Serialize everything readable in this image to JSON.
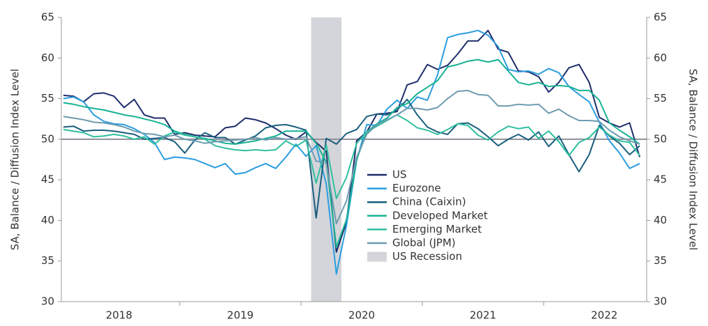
{
  "chart_data": {
    "type": "line",
    "y_label": "SA, Balance / Diffusion Index Level",
    "y2_label": "SA, Balance / Diffusion Index Level",
    "categories": [
      null,
      null,
      null,
      null,
      null,
      "2018",
      null,
      null,
      null,
      null,
      null,
      null,
      null,
      null,
      null,
      null,
      null,
      "2019",
      null,
      null,
      null,
      null,
      null,
      null,
      null,
      null,
      null,
      null,
      null,
      "2020",
      null,
      null,
      null,
      null,
      null,
      null,
      null,
      null,
      null,
      null,
      null,
      "2021",
      null,
      null,
      null,
      null,
      null,
      null,
      null,
      null,
      null,
      null,
      null,
      "2022",
      null,
      null,
      null,
      null
    ],
    "ylim": [
      30,
      65
    ],
    "yticks": [
      30,
      35,
      40,
      45,
      50,
      55,
      60,
      65
    ],
    "y2lim": [
      30,
      65
    ],
    "y2ticks": [
      30,
      35,
      40,
      45,
      50,
      55,
      60,
      65
    ],
    "reference_line": 50,
    "recession": {
      "name": "US Recession",
      "color": "#d4d5da",
      "span": [
        25,
        27
      ]
    },
    "series": [
      {
        "name": "US",
        "color": "#1f2d6b",
        "values": [
          55.4,
          55.3,
          54.6,
          55.6,
          55.7,
          55.3,
          53.9,
          54.9,
          53.0,
          52.6,
          52.6,
          50.6,
          50.8,
          50.5,
          50.4,
          50.3,
          51.4,
          51.6,
          52.6,
          52.4,
          52.0,
          51.3,
          50.5,
          50.0,
          50.9,
          49.6,
          48.5,
          36.1,
          39.8,
          49.8,
          50.9,
          53.1,
          53.2,
          53.4,
          56.7,
          57.1,
          59.2,
          58.6,
          59.1,
          60.5,
          62.1,
          62.1,
          63.4,
          61.1,
          60.7,
          58.4,
          58.3,
          57.7,
          55.8,
          57.0,
          58.8,
          59.2,
          57.0,
          52.7,
          52.0,
          51.5,
          52.0,
          47.8
        ]
      },
      {
        "name": "Eurozone",
        "color": "#2b9ddf",
        "values": [
          55.0,
          55.2,
          54.6,
          53.0,
          52.2,
          51.9,
          51.8,
          51.3,
          50.6,
          49.6,
          47.5,
          47.8,
          47.7,
          47.5,
          47.0,
          46.5,
          47.0,
          45.7,
          45.9,
          46.5,
          47.0,
          46.4,
          47.8,
          49.4,
          47.9,
          49.2,
          44.5,
          33.4,
          39.4,
          47.4,
          51.8,
          51.7,
          53.7,
          54.8,
          53.8,
          55.2,
          54.8,
          57.9,
          62.5,
          62.9,
          63.1,
          63.4,
          62.8,
          61.4,
          58.6,
          58.3,
          58.4,
          58.0,
          58.7,
          58.2,
          56.5,
          55.5,
          54.6,
          52.1,
          49.8,
          48.3,
          46.4,
          47.0
        ]
      },
      {
        "name": "China (Caixin)",
        "color": "#1a5e7e",
        "values": [
          51.5,
          51.6,
          51.0,
          51.1,
          51.1,
          51.0,
          50.8,
          50.6,
          50.0,
          50.1,
          50.2,
          49.7,
          48.3,
          49.9,
          50.8,
          50.2,
          50.2,
          49.4,
          49.9,
          50.4,
          51.4,
          51.7,
          51.8,
          51.5,
          51.1,
          40.3,
          50.1,
          49.4,
          50.7,
          51.2,
          52.8,
          53.1,
          53.0,
          53.6,
          54.9,
          53.0,
          51.5,
          50.9,
          50.6,
          51.9,
          52.0,
          51.3,
          50.3,
          49.2,
          50.0,
          50.6,
          49.9,
          50.9,
          49.1,
          50.4,
          48.1,
          46.0,
          48.1,
          51.7,
          50.4,
          49.5,
          48.1,
          49.2
        ]
      },
      {
        "name": "Developed Market",
        "color": "#17b394",
        "values": [
          54.5,
          54.3,
          54.0,
          53.8,
          53.6,
          53.3,
          53.0,
          52.8,
          52.5,
          52.2,
          51.8,
          51.0,
          50.6,
          50.3,
          50.1,
          49.8,
          49.5,
          49.4,
          49.6,
          49.8,
          50.1,
          50.4,
          51.0,
          51.0,
          51.0,
          49.5,
          47.2,
          36.7,
          40.1,
          47.5,
          50.9,
          51.9,
          52.6,
          53.9,
          54.4,
          55.6,
          56.4,
          57.2,
          58.9,
          59.2,
          59.6,
          59.8,
          59.5,
          59.8,
          58.4,
          57.0,
          56.7,
          57.0,
          56.5,
          56.6,
          56.5,
          56.0,
          56.0,
          54.8,
          52.0,
          51.1,
          50.3,
          49.4
        ]
      },
      {
        "name": "Emerging Market",
        "color": "#2ebf9f",
        "values": [
          51.2,
          51.0,
          50.8,
          50.3,
          50.4,
          50.6,
          50.4,
          50.0,
          50.3,
          49.4,
          50.4,
          50.9,
          50.5,
          50.3,
          50.0,
          49.2,
          48.9,
          48.7,
          48.6,
          48.7,
          48.6,
          48.7,
          49.8,
          49.1,
          49.9,
          44.6,
          49.3,
          42.7,
          45.3,
          49.5,
          50.9,
          51.6,
          52.3,
          53.0,
          52.3,
          51.4,
          51.1,
          50.6,
          51.2,
          51.9,
          51.7,
          50.5,
          49.9,
          50.9,
          51.6,
          51.3,
          51.5,
          50.1,
          51.0,
          49.7,
          48.0,
          49.6,
          50.2,
          51.5,
          50.5,
          49.8,
          49.6,
          48.0
        ]
      },
      {
        "name": "Global (JPM)",
        "color": "#6e9bb0",
        "values": [
          52.8,
          52.6,
          52.4,
          52.1,
          52.0,
          51.8,
          51.5,
          51.0,
          50.7,
          50.6,
          50.3,
          50.5,
          50.0,
          49.8,
          49.5,
          49.7,
          49.8,
          49.9,
          50.0,
          50.2,
          49.9,
          50.2,
          50.0,
          50.1,
          50.3,
          47.3,
          47.1,
          39.6,
          42.4,
          47.8,
          50.6,
          51.8,
          52.4,
          53.0,
          53.8,
          53.8,
          53.6,
          53.9,
          55.0,
          55.9,
          56.0,
          55.5,
          55.4,
          54.1,
          54.1,
          54.3,
          54.2,
          54.3,
          53.2,
          53.7,
          52.9,
          52.3,
          52.3,
          52.2,
          51.1,
          50.3,
          49.8,
          49.4
        ]
      }
    ]
  }
}
